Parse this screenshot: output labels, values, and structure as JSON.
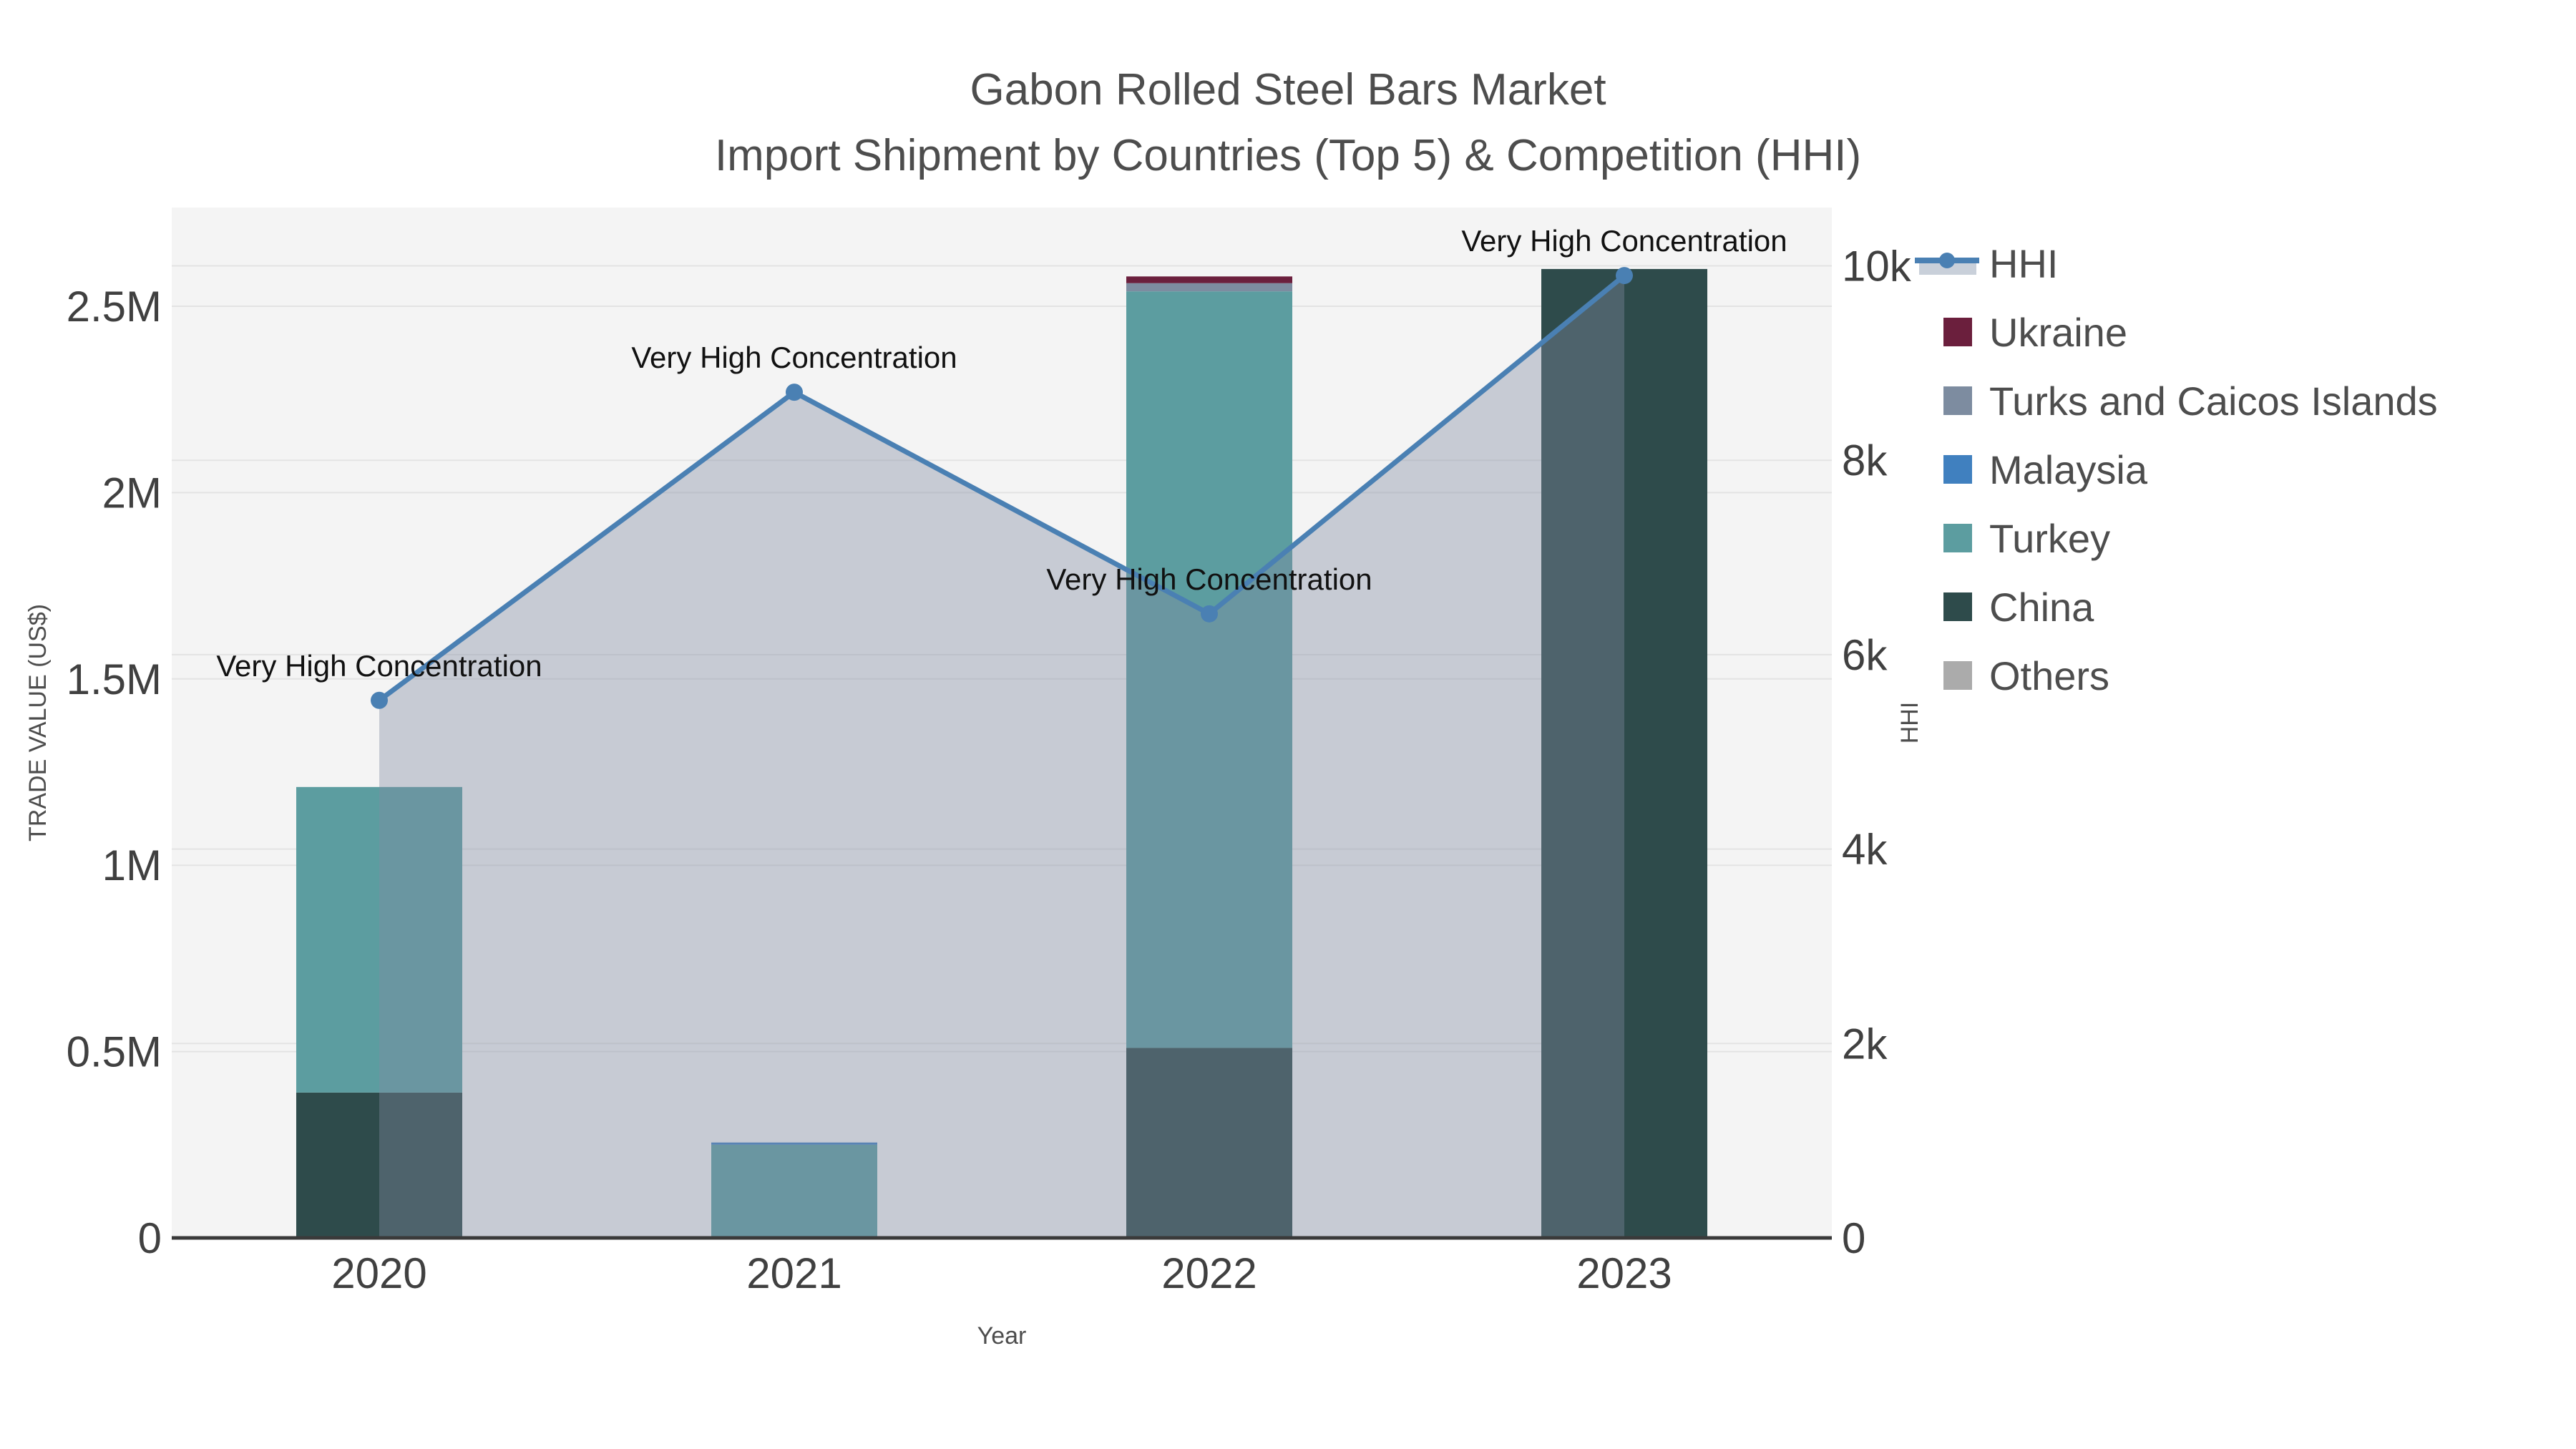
{
  "title": {
    "line1": "Gabon Rolled Steel Bars Market",
    "line2": "Import Shipment by Countries (Top 5) & Competition (HHI)"
  },
  "axes": {
    "x": {
      "label": "Year",
      "ticks": [
        "2020",
        "2021",
        "2022",
        "2023"
      ]
    },
    "left": {
      "label": "TRADE VALUE (US$)",
      "ticks": [
        {
          "label": "0",
          "value": 0
        },
        {
          "label": "0.5M",
          "value": 500000
        },
        {
          "label": "1M",
          "value": 1000000
        },
        {
          "label": "1.5M",
          "value": 1500000
        },
        {
          "label": "2M",
          "value": 2000000
        },
        {
          "label": "2.5M",
          "value": 2500000
        }
      ]
    },
    "right": {
      "label": "HHI",
      "ticks": [
        {
          "label": "0",
          "value": 0
        },
        {
          "label": "2k",
          "value": 2000
        },
        {
          "label": "4k",
          "value": 4000
        },
        {
          "label": "6k",
          "value": 6000
        },
        {
          "label": "8k",
          "value": 8000
        },
        {
          "label": "10k",
          "value": 10000
        }
      ]
    }
  },
  "chart_data": {
    "type": "combo: stacked bar (trade value, left axis) + line with area fill (HHI, right axis)",
    "categories": [
      "2020",
      "2021",
      "2022",
      "2023"
    ],
    "bar_value_unit": "US$",
    "series": [
      {
        "name": "China",
        "color": "#2e4b4b",
        "values": [
          390000,
          0,
          510000,
          2600000
        ]
      },
      {
        "name": "Turkey",
        "color": "#5c9da0",
        "values": [
          820000,
          250000,
          2030000,
          0
        ]
      },
      {
        "name": "Malaysia",
        "color": "#4080bf",
        "values": [
          0,
          6000,
          0,
          0
        ]
      },
      {
        "name": "Turks and Caicos Islands",
        "color": "#7d8ca0",
        "values": [
          0,
          0,
          22000,
          0
        ]
      },
      {
        "name": "Ukraine",
        "color": "#6b1f3d",
        "values": [
          0,
          0,
          18000,
          0
        ]
      },
      {
        "name": "Others",
        "color": "#ababab",
        "values": [
          0,
          0,
          0,
          0
        ]
      }
    ],
    "line_series": {
      "name": "HHI",
      "axis": "right",
      "color": "#4a80b3",
      "area_fill": "rgba(130,140,161,0.39)",
      "values": [
        5530,
        8700,
        6420,
        9900
      ]
    },
    "annotations": [
      {
        "category": "2020",
        "text": "Very High Concentration"
      },
      {
        "category": "2021",
        "text": "Very High Concentration"
      },
      {
        "category": "2022",
        "text": "Very High Concentration"
      },
      {
        "category": "2023",
        "text": "Very High Concentration"
      }
    ],
    "ylim_left": [
      0,
      2765000
    ],
    "ylim_right": [
      0,
      10600
    ],
    "grid": true,
    "legend_position": "right"
  },
  "legend": {
    "items": [
      {
        "label": "HHI",
        "type": "line",
        "color": "#4a80b3",
        "band_color": "#c9d0da"
      },
      {
        "label": "Ukraine",
        "type": "square",
        "color": "#6b1f3d"
      },
      {
        "label": "Turks and Caicos Islands",
        "type": "square",
        "color": "#7d8ca0"
      },
      {
        "label": "Malaysia",
        "type": "square",
        "color": "#4080bf"
      },
      {
        "label": "Turkey",
        "type": "square",
        "color": "#5c9da0"
      },
      {
        "label": "China",
        "type": "square",
        "color": "#2e4b4b"
      },
      {
        "label": "Others",
        "type": "square",
        "color": "#ababab"
      }
    ]
  },
  "colors": {
    "plot_background": "#f4f4f4",
    "figure_background": "#ffffff",
    "gridline": "#e3e3e3",
    "axis_line": "#3a3a3a",
    "annotation_text": "#111111",
    "tick_text": "#404040"
  }
}
